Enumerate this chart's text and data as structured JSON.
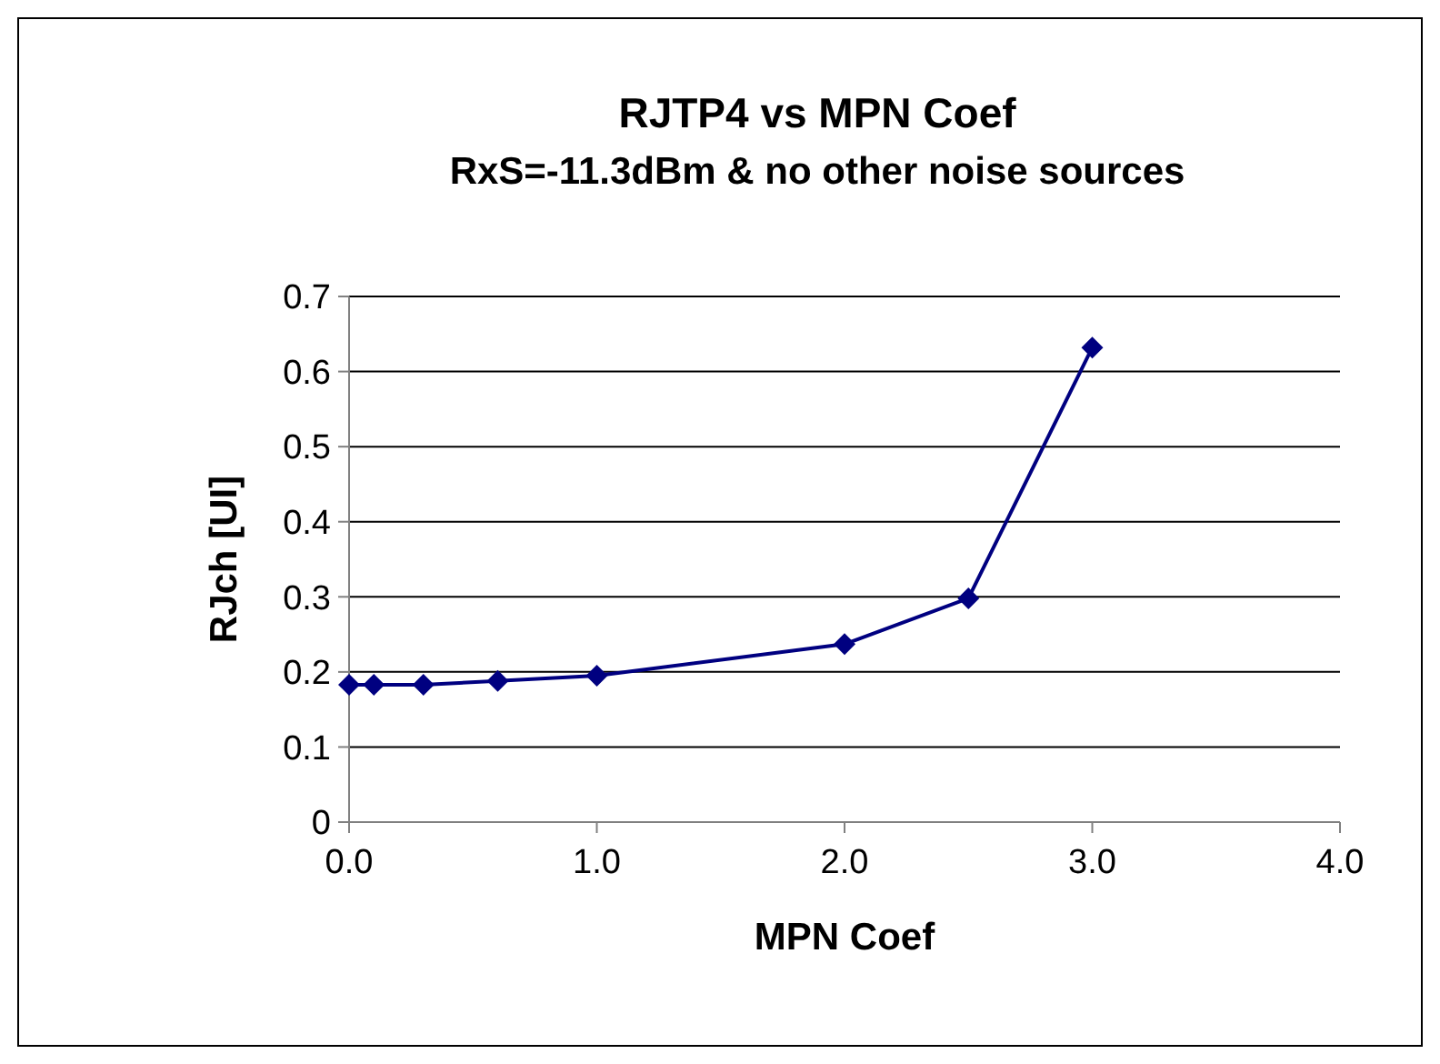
{
  "chart_data": {
    "type": "line",
    "title": "RJTP4 vs MPN Coef",
    "subtitle": "RxS=-11.3dBm & no other noise sources",
    "xlabel": "MPN Coef",
    "ylabel": "RJch [UI]",
    "x": [
      0,
      0.1,
      0.3,
      0.6,
      1.0,
      2.0,
      2.5,
      3.0
    ],
    "series": [
      {
        "color": "#000080",
        "values": [
          0.183,
          0.183,
          0.183,
          0.188,
          0.195,
          0.237,
          0.298,
          0.632
        ]
      }
    ],
    "xlim": [
      0,
      4
    ],
    "xticks": [
      {
        "value": 0,
        "label": "0.0"
      },
      {
        "value": 1,
        "label": "1.0"
      },
      {
        "value": 2,
        "label": "2.0"
      },
      {
        "value": 3,
        "label": "3.0"
      },
      {
        "value": 4,
        "label": "4.0"
      }
    ],
    "ylim": [
      0,
      0.7
    ],
    "yticks": [
      0,
      0.1,
      0.2,
      0.3,
      0.4,
      0.5,
      0.6,
      0.7
    ],
    "grid": "y",
    "marker": "diamond",
    "line_style": "solid"
  }
}
